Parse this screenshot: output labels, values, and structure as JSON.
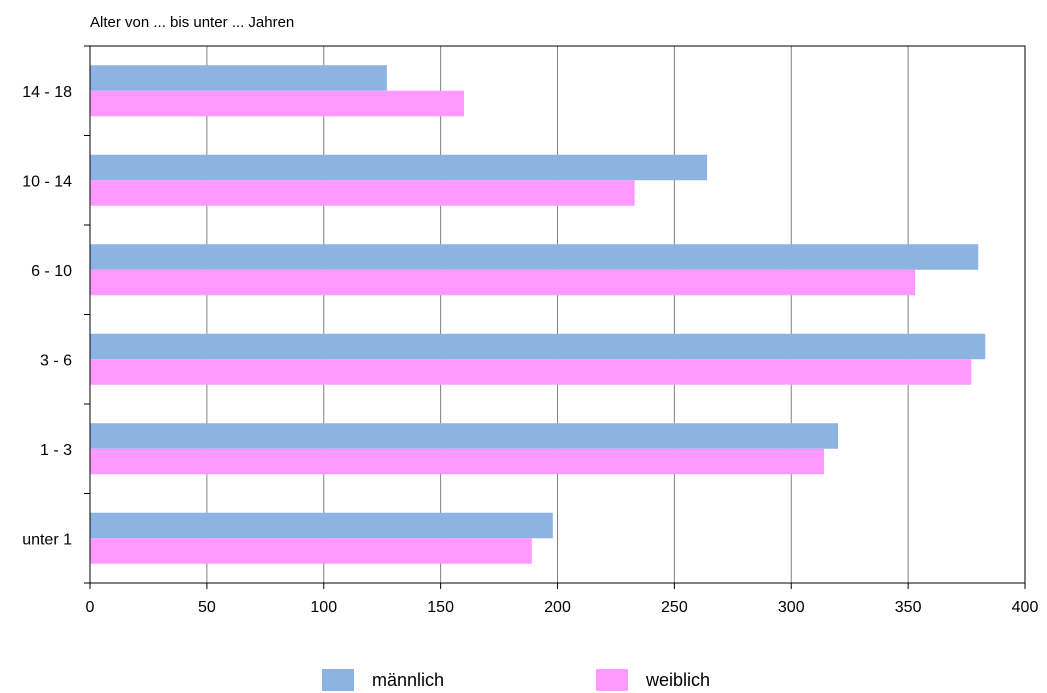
{
  "chart_data": {
    "type": "bar",
    "orientation": "horizontal",
    "title": "",
    "ylabel": "Alter von ... bis unter ... Jahren",
    "xlabel": "",
    "categories": [
      "unter 1",
      "1 - 3",
      "3 - 6",
      "6 - 10",
      "10 - 14",
      "14 - 18"
    ],
    "series": [
      {
        "name": "männlich",
        "color": "#8DB3E2",
        "values": [
          198,
          320,
          383,
          380,
          264,
          127
        ]
      },
      {
        "name": "weiblich",
        "color": "#FF99FF",
        "values": [
          189,
          314,
          377,
          353,
          233,
          160
        ]
      }
    ],
    "xlim": [
      0,
      400
    ],
    "xticks": [
      0,
      50,
      100,
      150,
      200,
      250,
      300,
      350,
      400
    ],
    "grid": true,
    "legend": "bottom"
  }
}
